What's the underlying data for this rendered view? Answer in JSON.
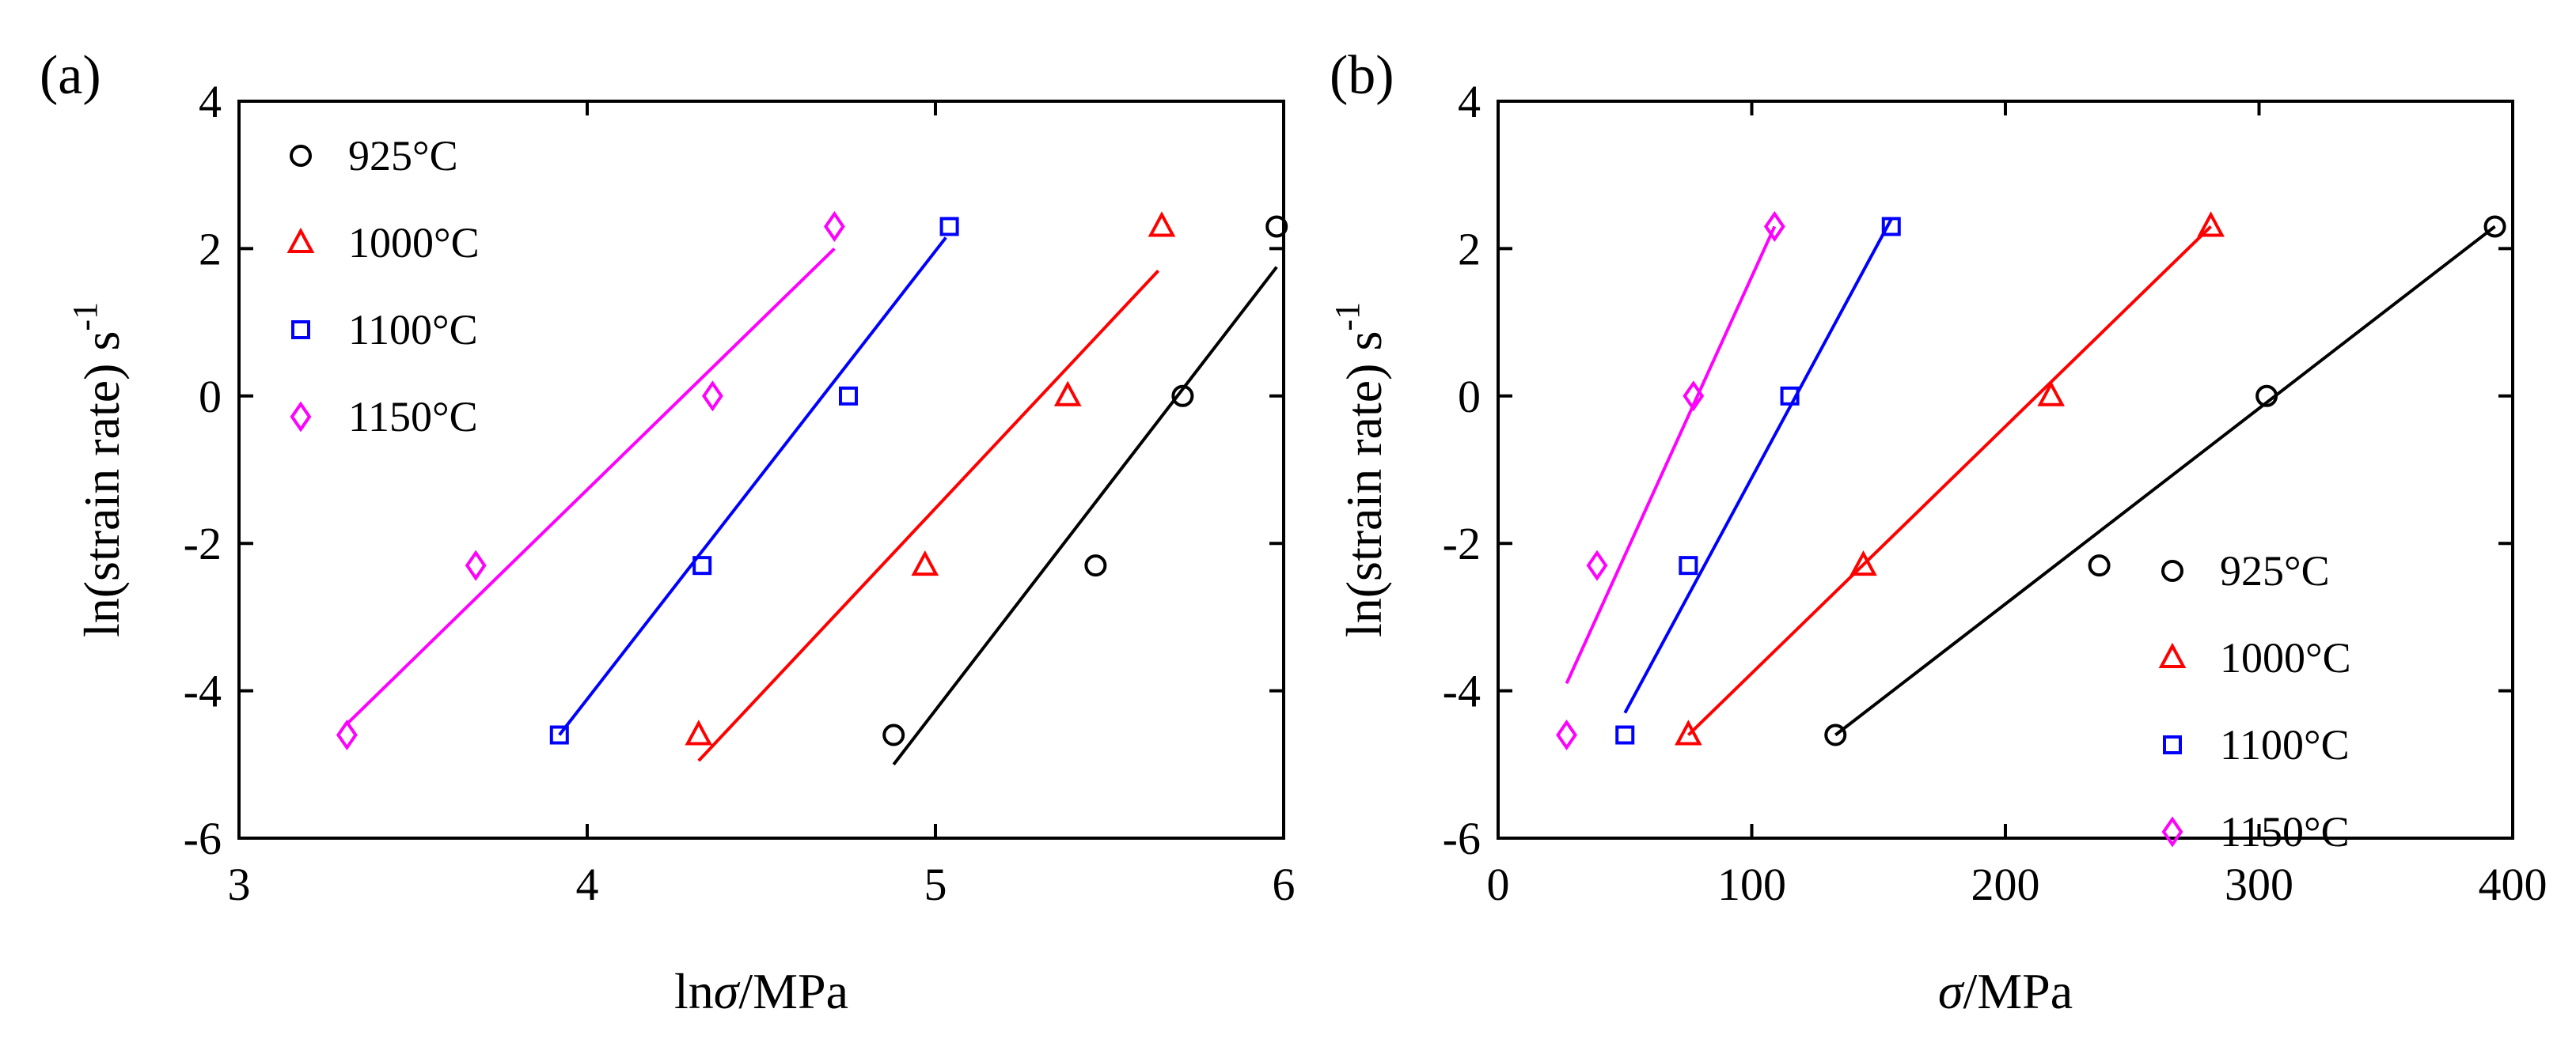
{
  "chart_data": [
    {
      "type": "scatter",
      "panel_label": "(a)",
      "xlabel_main": "ln",
      "xlabel_var": "σ",
      "xlabel_unit": "/MPa",
      "ylabel_main": "ln(strain rate) s",
      "ylabel_sup": "-1",
      "xlim": [
        3,
        6
      ],
      "ylim": [
        -6,
        4
      ],
      "xticks": [
        3,
        4,
        5,
        6
      ],
      "yticks": [
        -6,
        -4,
        -2,
        0,
        2,
        4
      ],
      "xtick_labels": [
        "3",
        "4",
        "5",
        "6"
      ],
      "ytick_labels": [
        "-6",
        "-4",
        "-2",
        "0",
        "2",
        "4"
      ],
      "grid": false,
      "legend_position": "top-left",
      "series": [
        {
          "name": "925°C",
          "color": "#000000",
          "marker": "circle",
          "x": [
            4.88,
            5.46,
            5.71,
            5.98
          ],
          "y": [
            -4.6,
            -2.3,
            0,
            2.3
          ],
          "fit": [
            [
              4.88,
              -5.0
            ],
            [
              5.98,
              1.75
            ]
          ]
        },
        {
          "name": "1000°C",
          "color": "#ff0000",
          "marker": "triangle",
          "x": [
            4.32,
            4.97,
            5.38,
            5.65
          ],
          "y": [
            -4.6,
            -2.3,
            0,
            2.3
          ],
          "fit": [
            [
              4.32,
              -4.95
            ],
            [
              5.64,
              1.7
            ]
          ]
        },
        {
          "name": "1100°C",
          "color": "#0000ff",
          "marker": "square",
          "x": [
            3.92,
            4.33,
            4.75,
            5.04
          ],
          "y": [
            -4.6,
            -2.3,
            0,
            2.3
          ],
          "fit": [
            [
              3.92,
              -4.6
            ],
            [
              5.03,
              2.15
            ]
          ]
        },
        {
          "name": "1150°C",
          "color": "#ff00ff",
          "marker": "diamond",
          "x": [
            3.31,
            3.68,
            4.36,
            4.71
          ],
          "y": [
            -4.6,
            -2.3,
            0,
            2.3
          ],
          "fit": [
            [
              3.31,
              -4.45
            ],
            [
              4.71,
              2.0
            ]
          ]
        }
      ]
    },
    {
      "type": "scatter",
      "panel_label": "(b)",
      "xlabel_main": "",
      "xlabel_var": "σ",
      "xlabel_unit": "/MPa",
      "ylabel_main": "ln(strain rate) s",
      "ylabel_sup": "-1",
      "xlim": [
        0,
        400
      ],
      "ylim": [
        -6,
        4
      ],
      "xticks": [
        0,
        100,
        200,
        300,
        400
      ],
      "yticks": [
        -6,
        -4,
        -2,
        0,
        2,
        4
      ],
      "xtick_labels": [
        "0",
        "100",
        "200",
        "300",
        "400"
      ],
      "ytick_labels": [
        "-6",
        "-4",
        "-2",
        "0",
        "2",
        "4"
      ],
      "grid": false,
      "legend_position": "bottom-right",
      "series": [
        {
          "name": "925°C",
          "color": "#000000",
          "marker": "circle",
          "x": [
            133,
            237,
            303,
            393
          ],
          "y": [
            -4.6,
            -2.3,
            0,
            2.3
          ],
          "fit": [
            [
              133,
              -4.6
            ],
            [
              393,
              2.3
            ]
          ]
        },
        {
          "name": "1000°C",
          "color": "#ff0000",
          "marker": "triangle",
          "x": [
            75,
            144,
            218,
            281
          ],
          "y": [
            -4.6,
            -2.3,
            0,
            2.3
          ],
          "fit": [
            [
              75,
              -4.6
            ],
            [
              281,
              2.3
            ]
          ]
        },
        {
          "name": "1100°C",
          "color": "#0000ff",
          "marker": "square",
          "x": [
            50,
            75,
            115,
            155
          ],
          "y": [
            -4.6,
            -2.3,
            0,
            2.3
          ],
          "fit": [
            [
              50,
              -4.3
            ],
            [
              155,
              2.4
            ]
          ]
        },
        {
          "name": "1150°C",
          "color": "#ff00ff",
          "marker": "diamond",
          "x": [
            27,
            39,
            77,
            109
          ],
          "y": [
            -4.6,
            -2.3,
            0,
            2.3
          ],
          "fit": [
            [
              27,
              -3.9
            ],
            [
              109,
              2.3
            ]
          ]
        }
      ]
    }
  ]
}
